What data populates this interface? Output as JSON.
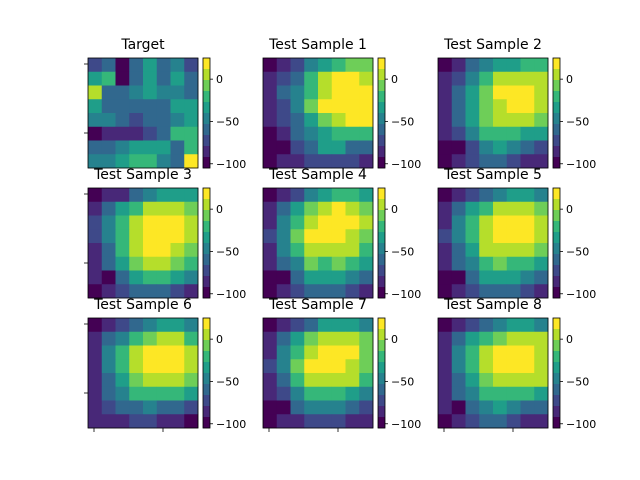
{
  "chart_data": {
    "type": "heatmap",
    "grid_size": 8,
    "colormap": [
      "#440154",
      "#482878",
      "#3e4989",
      "#31688e",
      "#26828e",
      "#1f9e89",
      "#35b779",
      "#6ece58",
      "#b5de2b",
      "#fde725"
    ],
    "vmin": -105,
    "vmax": 25,
    "colorbar_ticks": [
      0,
      -50,
      -100
    ],
    "colorbar_tick_labels": [
      "0",
      "−50",
      "−100"
    ],
    "panels": [
      {
        "title": "Target",
        "values": [
          [
            -70,
            -55,
            -100,
            -65,
            -35,
            -55,
            -45,
            -70
          ],
          [
            -40,
            -25,
            -95,
            -60,
            -30,
            -55,
            -30,
            -65
          ],
          [
            0,
            -55,
            -55,
            -45,
            -40,
            -50,
            -45,
            -55
          ],
          [
            -40,
            -55,
            -55,
            -60,
            -55,
            -65,
            -40,
            -40
          ],
          [
            -45,
            -45,
            -65,
            -75,
            -60,
            -65,
            -45,
            -35
          ],
          [
            -100,
            -80,
            -80,
            -80,
            -75,
            -60,
            -20,
            -15
          ],
          [
            -55,
            -65,
            -50,
            -40,
            -40,
            -40,
            -55,
            -20
          ],
          [
            -45,
            -45,
            -30,
            -15,
            -20,
            -45,
            -60,
            25
          ]
        ]
      },
      {
        "title": "Test Sample 1",
        "values": [
          [
            -95,
            -80,
            -75,
            -50,
            -35,
            -20,
            -10,
            -5
          ],
          [
            -85,
            -70,
            -55,
            -20,
            5,
            15,
            15,
            10
          ],
          [
            -85,
            -60,
            -45,
            -15,
            5,
            20,
            20,
            20
          ],
          [
            -90,
            -70,
            -45,
            -10,
            15,
            25,
            25,
            20
          ],
          [
            -90,
            -70,
            -55,
            -30,
            -5,
            10,
            15,
            15
          ],
          [
            -95,
            -80,
            -60,
            -50,
            -30,
            -25,
            -20,
            -15
          ],
          [
            -100,
            -110,
            -70,
            -55,
            -40,
            -40,
            -55,
            -55
          ],
          [
            -95,
            -85,
            -80,
            -70,
            -70,
            -70,
            -75,
            -80
          ]
        ]
      },
      {
        "title": "Test Sample 2",
        "values": [
          [
            -95,
            -80,
            -65,
            -50,
            -40,
            -30,
            -20,
            -20
          ],
          [
            -90,
            -70,
            -50,
            -25,
            0,
            10,
            10,
            0
          ],
          [
            -80,
            -55,
            -30,
            -10,
            15,
            20,
            20,
            10
          ],
          [
            -85,
            -55,
            -30,
            -5,
            10,
            20,
            15,
            5
          ],
          [
            -85,
            -60,
            -40,
            -5,
            5,
            10,
            5,
            -10
          ],
          [
            -90,
            -70,
            -50,
            -25,
            -20,
            -25,
            -30,
            -40
          ],
          [
            -95,
            -105,
            -70,
            -45,
            -40,
            -45,
            -60,
            -70
          ],
          [
            -95,
            -85,
            -75,
            -65,
            -65,
            -75,
            -85,
            -90
          ]
        ]
      },
      {
        "title": "Test Sample 3",
        "values": [
          [
            -100,
            -90,
            -80,
            -65,
            -50,
            -40,
            -35,
            -40
          ],
          [
            -85,
            -60,
            -40,
            -20,
            5,
            10,
            0,
            -10
          ],
          [
            -75,
            -45,
            -20,
            10,
            25,
            25,
            20,
            0
          ],
          [
            -75,
            -45,
            -15,
            10,
            25,
            25,
            20,
            5
          ],
          [
            -80,
            -55,
            -25,
            5,
            15,
            20,
            10,
            -5
          ],
          [
            -85,
            -65,
            -40,
            -10,
            5,
            5,
            -5,
            -20
          ],
          [
            -90,
            -110,
            -55,
            -30,
            -20,
            -25,
            -35,
            -50
          ],
          [
            -95,
            -85,
            -75,
            -60,
            -55,
            -60,
            -70,
            -80
          ]
        ]
      },
      {
        "title": "Test Sample 4",
        "values": [
          [
            -100,
            -85,
            -70,
            -50,
            -35,
            -25,
            -25,
            -35
          ],
          [
            -90,
            -60,
            -40,
            -10,
            10,
            15,
            10,
            -5
          ],
          [
            -80,
            -45,
            -20,
            5,
            20,
            25,
            15,
            0
          ],
          [
            -75,
            -45,
            -10,
            15,
            20,
            15,
            10,
            -5
          ],
          [
            -80,
            -50,
            -25,
            0,
            10,
            10,
            0,
            -15
          ],
          [
            -90,
            -65,
            -45,
            -5,
            -15,
            -10,
            -20,
            -35
          ],
          [
            -95,
            -110,
            -60,
            -40,
            -40,
            -40,
            -50,
            -65
          ],
          [
            -95,
            -85,
            -75,
            -60,
            -60,
            -65,
            -75,
            -85
          ]
        ]
      },
      {
        "title": "Test Sample 5",
        "values": [
          [
            -100,
            -90,
            -75,
            -60,
            -45,
            -40,
            -40,
            -45
          ],
          [
            -85,
            -60,
            -40,
            -15,
            0,
            10,
            5,
            -10
          ],
          [
            -80,
            -50,
            -25,
            5,
            20,
            25,
            20,
            0
          ],
          [
            -75,
            -50,
            -15,
            10,
            20,
            20,
            15,
            0
          ],
          [
            -80,
            -55,
            -30,
            0,
            10,
            10,
            5,
            -10
          ],
          [
            -85,
            -65,
            -45,
            -20,
            -10,
            -15,
            -25,
            -35
          ],
          [
            -95,
            -110,
            -60,
            -40,
            -35,
            -40,
            -50,
            -60
          ],
          [
            -95,
            -85,
            -75,
            -60,
            -60,
            -65,
            -75,
            -80
          ]
        ]
      },
      {
        "title": "Test Sample 6",
        "values": [
          [
            -95,
            -85,
            -70,
            -55,
            -45,
            -40,
            -40,
            -45
          ],
          [
            -85,
            -65,
            -45,
            -20,
            -5,
            0,
            0,
            -15
          ],
          [
            -80,
            -50,
            -20,
            5,
            15,
            20,
            15,
            0
          ],
          [
            -80,
            -50,
            -20,
            5,
            20,
            20,
            15,
            0
          ],
          [
            -80,
            -55,
            -30,
            -5,
            10,
            10,
            5,
            -10
          ],
          [
            -85,
            -65,
            -45,
            -25,
            -20,
            -20,
            -25,
            -40
          ],
          [
            -90,
            -75,
            -60,
            -55,
            -50,
            -55,
            -60,
            -75
          ],
          [
            -90,
            -85,
            -80,
            -75,
            -75,
            -80,
            -85,
            -100
          ]
        ]
      },
      {
        "title": "Test Sample 7",
        "values": [
          [
            -100,
            -90,
            -70,
            -55,
            -40,
            -30,
            -35,
            -45
          ],
          [
            -85,
            -60,
            -35,
            -10,
            10,
            10,
            5,
            -10
          ],
          [
            -80,
            -45,
            -15,
            10,
            20,
            25,
            15,
            -5
          ],
          [
            -75,
            -45,
            -10,
            15,
            25,
            20,
            10,
            -5
          ],
          [
            -80,
            -55,
            -25,
            0,
            10,
            10,
            0,
            -15
          ],
          [
            -90,
            -70,
            -45,
            -25,
            -20,
            -20,
            -30,
            -45
          ],
          [
            -95,
            -110,
            -60,
            -50,
            -45,
            -50,
            -60,
            -70
          ],
          [
            -95,
            -85,
            -80,
            -70,
            -70,
            -75,
            -80,
            -85
          ]
        ]
      },
      {
        "title": "Test Sample 8",
        "values": [
          [
            -100,
            -90,
            -75,
            -60,
            -50,
            -40,
            -40,
            -45
          ],
          [
            -85,
            -60,
            -40,
            -20,
            -5,
            5,
            10,
            0
          ],
          [
            -80,
            -50,
            -25,
            0,
            15,
            20,
            20,
            10
          ],
          [
            -80,
            -50,
            -20,
            5,
            15,
            20,
            20,
            10
          ],
          [
            -80,
            -55,
            -30,
            -5,
            5,
            10,
            10,
            0
          ],
          [
            -85,
            -65,
            -45,
            -20,
            -15,
            -15,
            -20,
            -30
          ],
          [
            -90,
            -110,
            -60,
            -45,
            -40,
            -45,
            -55,
            -65
          ],
          [
            -95,
            -85,
            -75,
            -65,
            -65,
            -70,
            -80,
            -90
          ]
        ]
      }
    ]
  }
}
